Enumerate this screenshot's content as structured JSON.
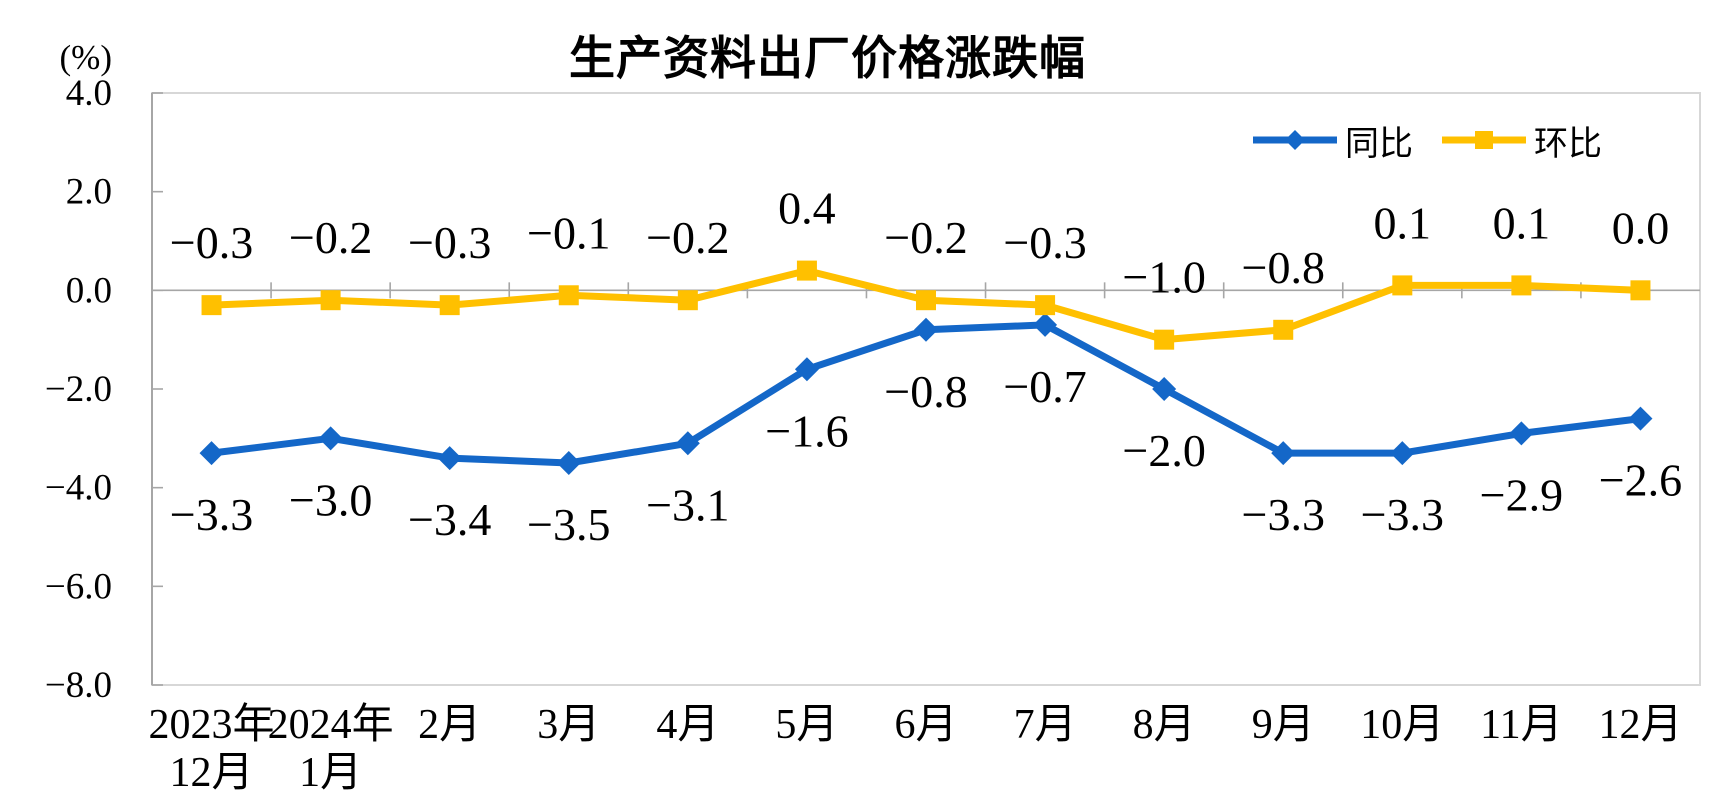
{
  "chart_data": {
    "type": "line",
    "title": "生产资料出厂价格涨跌幅",
    "ylabel": "(%)",
    "xlabel": "",
    "ylim": [
      -8.0,
      4.0
    ],
    "y_tick_labels": [
      "4.0",
      "2.0",
      "0.0",
      "-2.0",
      "-4.0",
      "-6.0",
      "-8.0"
    ],
    "y_tick_values": [
      4.0,
      2.0,
      0.0,
      -2.0,
      -4.0,
      -6.0,
      -8.0
    ],
    "categories": [
      [
        "2023年",
        "12月"
      ],
      [
        "2024年",
        "1月"
      ],
      [
        "2月"
      ],
      [
        "3月"
      ],
      [
        "4月"
      ],
      [
        "5月"
      ],
      [
        "6月"
      ],
      [
        "7月"
      ],
      [
        "8月"
      ],
      [
        "9月"
      ],
      [
        "10月"
      ],
      [
        "11月"
      ],
      [
        "12月"
      ]
    ],
    "series": [
      {
        "name": "同比",
        "marker": "diamond",
        "color": "#1467C8",
        "label_position": "below",
        "values": [
          -3.3,
          -3.0,
          -3.4,
          -3.5,
          -3.1,
          -1.6,
          -0.8,
          -0.7,
          -2.0,
          -3.3,
          -3.3,
          -2.9,
          -2.6
        ]
      },
      {
        "name": "环比",
        "marker": "square",
        "color": "#FFC000",
        "label_position": "above",
        "values": [
          -0.3,
          -0.2,
          -0.3,
          -0.1,
          -0.2,
          0.4,
          -0.2,
          -0.3,
          -1.0,
          -0.8,
          0.1,
          0.1,
          0.0
        ]
      }
    ],
    "legend_position": "top-right",
    "grid": false,
    "axis_color": "#A6A6A6",
    "border_color": "#D7D7D7",
    "label_color": "#000000"
  }
}
